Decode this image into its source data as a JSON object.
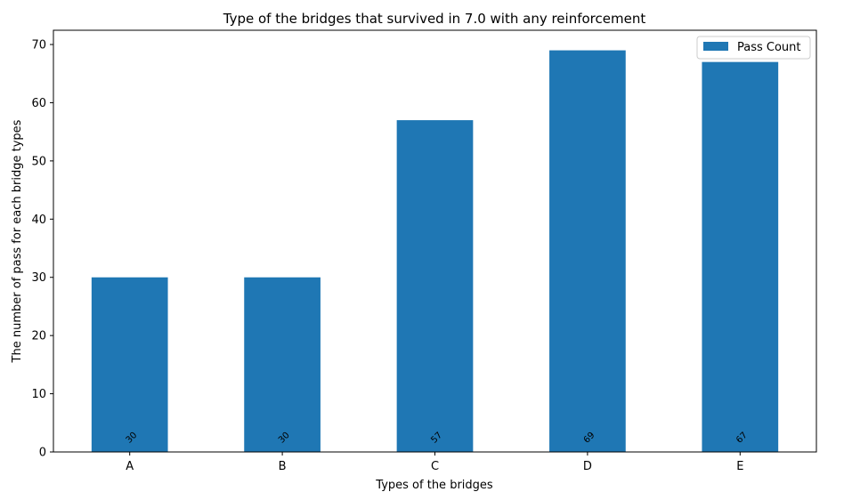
{
  "chart_data": {
    "type": "bar",
    "title": "Type of the bridges that survived in 7.0 with any reinforcement",
    "xlabel": "Types of the bridges",
    "ylabel": "The number of pass for each bridge types",
    "categories": [
      "A",
      "B",
      "C",
      "D",
      "E"
    ],
    "series": [
      {
        "name": "Pass Count",
        "values": [
          30,
          30,
          57,
          69,
          67
        ],
        "color": "#1f77b4"
      }
    ],
    "data_labels": [
      "30",
      "30",
      "57",
      "69",
      "67"
    ],
    "yticks": [
      0,
      10,
      20,
      30,
      40,
      50,
      60,
      70
    ],
    "ylim": [
      0,
      72.45
    ],
    "grid": false,
    "legend_position": "top-right"
  }
}
